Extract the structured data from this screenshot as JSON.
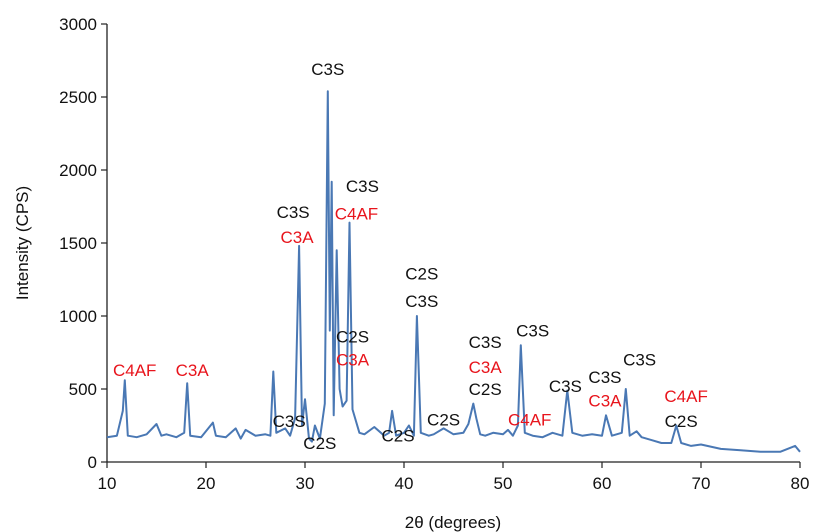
{
  "chart_data": {
    "type": "line",
    "title": "",
    "xlabel": "2θ (degrees)",
    "ylabel": "Intensity (CPS)",
    "xlim": [
      10,
      80
    ],
    "ylim": [
      0,
      3000
    ],
    "xticks": [
      "10",
      "20",
      "30",
      "40",
      "50",
      "60",
      "70",
      "80"
    ],
    "yticks": [
      "0",
      "500",
      "1000",
      "1500",
      "2000",
      "2500",
      "3000"
    ],
    "grid": false,
    "legend": "none",
    "line_color": "#4a78b4",
    "series": [
      {
        "x": [
          10,
          11,
          11.6,
          11.8,
          12.1,
          13,
          14,
          15,
          15.5,
          16,
          17,
          17.8,
          18.1,
          18.4,
          19.5,
          20.7,
          21,
          22,
          23,
          23.5,
          24,
          25,
          26,
          26.5,
          26.8,
          27.1,
          28,
          28.5,
          29,
          29.4,
          29.7,
          30,
          30.4,
          30.7,
          31,
          31.5,
          32,
          32.3,
          32.5,
          32.7,
          32.9,
          33.2,
          33.5,
          33.8,
          34.2,
          34.5,
          34.8,
          35.5,
          36,
          37,
          38,
          38.5,
          38.8,
          39.2,
          40,
          40.5,
          41,
          41.3,
          41.7,
          42.5,
          43,
          44,
          45,
          46,
          46.5,
          47,
          47.3,
          47.7,
          48.2,
          49,
          50,
          50.5,
          51,
          51.5,
          51.8,
          52.2,
          53,
          54,
          55,
          56,
          56.5,
          57,
          58,
          59,
          60,
          60.4,
          61,
          62,
          62.4,
          62.8,
          63.5,
          64,
          65,
          66,
          67,
          67.5,
          68,
          69,
          70,
          72,
          74,
          76,
          78,
          79.5,
          80
        ],
        "y": [
          170,
          180,
          350,
          560,
          180,
          170,
          190,
          260,
          180,
          190,
          170,
          200,
          540,
          180,
          170,
          270,
          180,
          170,
          230,
          160,
          220,
          180,
          190,
          180,
          620,
          200,
          230,
          180,
          300,
          1480,
          250,
          430,
          160,
          140,
          250,
          160,
          400,
          2540,
          900,
          1920,
          320,
          1450,
          500,
          380,
          420,
          1640,
          360,
          200,
          190,
          240,
          180,
          200,
          350,
          180,
          200,
          250,
          180,
          1000,
          200,
          180,
          190,
          230,
          190,
          200,
          260,
          400,
          300,
          190,
          180,
          200,
          190,
          220,
          180,
          250,
          800,
          200,
          180,
          170,
          200,
          180,
          490,
          200,
          180,
          190,
          180,
          320,
          180,
          200,
          500,
          180,
          210,
          170,
          150,
          130,
          130,
          250,
          130,
          110,
          120,
          90,
          80,
          70,
          70,
          110,
          70
        ]
      }
    ],
    "annotations": [
      {
        "text": "C3S",
        "x": 32.3,
        "y": 2650,
        "color": "black"
      },
      {
        "text": "C3S",
        "x": 35.8,
        "y": 1850,
        "color": "black"
      },
      {
        "text": "C4AF",
        "x": 35.2,
        "y": 1660,
        "color": "red"
      },
      {
        "text": "C3S",
        "x": 28.8,
        "y": 1670,
        "color": "black"
      },
      {
        "text": "C3A",
        "x": 29.2,
        "y": 1500,
        "color": "red"
      },
      {
        "text": "C2S",
        "x": 41.8,
        "y": 1250,
        "color": "black"
      },
      {
        "text": "C3S",
        "x": 41.8,
        "y": 1060,
        "color": "black"
      },
      {
        "text": "C2S",
        "x": 34.8,
        "y": 820,
        "color": "black"
      },
      {
        "text": "C3A",
        "x": 34.8,
        "y": 660,
        "color": "red"
      },
      {
        "text": "C4AF",
        "x": 12.8,
        "y": 590,
        "color": "red"
      },
      {
        "text": "C3A",
        "x": 18.6,
        "y": 590,
        "color": "red"
      },
      {
        "text": "C3S",
        "x": 48.2,
        "y": 780,
        "color": "black"
      },
      {
        "text": "C3A",
        "x": 48.2,
        "y": 610,
        "color": "red"
      },
      {
        "text": "C2S",
        "x": 48.2,
        "y": 460,
        "color": "black"
      },
      {
        "text": "C3S",
        "x": 53,
        "y": 860,
        "color": "black"
      },
      {
        "text": "C3S",
        "x": 56.3,
        "y": 480,
        "color": "black"
      },
      {
        "text": "C3S",
        "x": 60.3,
        "y": 540,
        "color": "black"
      },
      {
        "text": "C3S",
        "x": 63.8,
        "y": 660,
        "color": "black"
      },
      {
        "text": "C3A",
        "x": 60.3,
        "y": 380,
        "color": "red"
      },
      {
        "text": "C4AF",
        "x": 52.7,
        "y": 250,
        "color": "red"
      },
      {
        "text": "C4AF",
        "x": 68.5,
        "y": 410,
        "color": "red"
      },
      {
        "text": "C2S",
        "x": 68,
        "y": 240,
        "color": "black"
      },
      {
        "text": "C3S",
        "x": 28.4,
        "y": 240,
        "color": "black"
      },
      {
        "text": "C2S",
        "x": 31.5,
        "y": 90,
        "color": "black"
      },
      {
        "text": "C2S",
        "x": 39.4,
        "y": 140,
        "color": "black"
      },
      {
        "text": "C2S",
        "x": 44,
        "y": 250,
        "color": "black"
      }
    ]
  }
}
